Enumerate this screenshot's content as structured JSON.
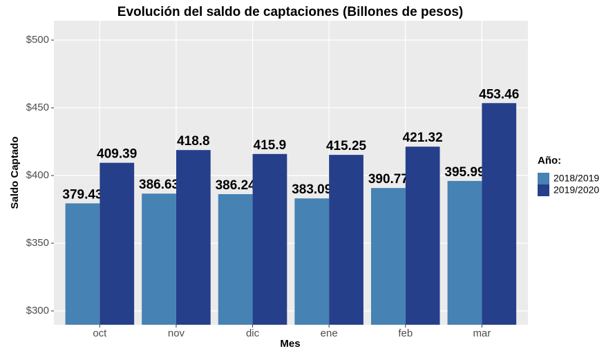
{
  "chart_data": {
    "type": "bar",
    "title": "Evolución del saldo de captaciones (Billones de pesos)",
    "x_label": "Mes",
    "y_label": "Saldo Captado",
    "legend_title": "Año:",
    "categories": [
      "oct",
      "nov",
      "dic",
      "ene",
      "feb",
      "mar"
    ],
    "series": [
      {
        "name": "2018/2019",
        "color": "#4682b4",
        "values": [
          379.43,
          386.63,
          386.24,
          383.09,
          390.77,
          395.99
        ]
      },
      {
        "name": "2019/2020",
        "color": "#263f8a",
        "values": [
          409.39,
          418.8,
          415.9,
          415.25,
          421.32,
          453.46
        ]
      }
    ],
    "ylim": [
      289.8,
      514.3
    ],
    "yticks": [
      {
        "value": 300,
        "label": "$300"
      },
      {
        "value": 350,
        "label": "$350"
      },
      {
        "value": 400,
        "label": "$400"
      },
      {
        "value": 450,
        "label": "$450"
      },
      {
        "value": 500,
        "label": "$500"
      }
    ],
    "grid": true,
    "legend_position": "right"
  }
}
